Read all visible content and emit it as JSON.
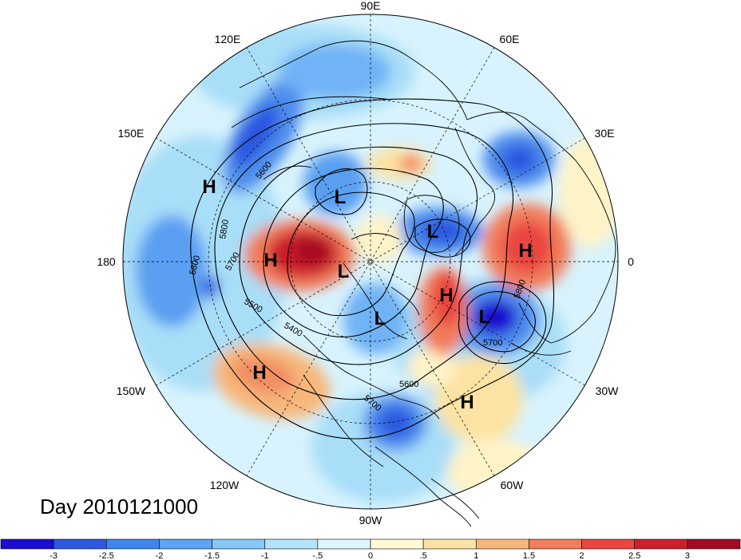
{
  "date_label": "Day 2010121000",
  "longitude_labels": [
    {
      "text": "90E",
      "lon": 90
    },
    {
      "text": "60E",
      "lon": 60
    },
    {
      "text": "30E",
      "lon": 30
    },
    {
      "text": "0",
      "lon": 0
    },
    {
      "text": "30W",
      "lon": -30
    },
    {
      "text": "60W",
      "lon": -60
    },
    {
      "text": "90W",
      "lon": -90
    },
    {
      "text": "120W",
      "lon": -120
    },
    {
      "text": "150W",
      "lon": -150
    },
    {
      "text": "180",
      "lon": 180
    },
    {
      "text": "150E",
      "lon": 150
    },
    {
      "text": "120E",
      "lon": 120
    }
  ],
  "pressure_centers": [
    {
      "type": "H",
      "label": "H"
    },
    {
      "type": "L",
      "label": "L"
    },
    {
      "type": "L",
      "label": "L"
    },
    {
      "type": "H",
      "label": "H"
    },
    {
      "type": "L",
      "label": "L"
    },
    {
      "type": "H",
      "label": "H"
    },
    {
      "type": "L",
      "label": "L"
    },
    {
      "type": "H",
      "label": "H"
    },
    {
      "type": "L",
      "label": "L"
    },
    {
      "type": "L",
      "label": "L"
    },
    {
      "type": "H",
      "label": "H"
    },
    {
      "type": "H",
      "label": "H"
    }
  ],
  "contour_labels": [
    "5800",
    "5800",
    "5700",
    "5600",
    "5500",
    "5400",
    "5600",
    "5700",
    "5800",
    "5700",
    "5600"
  ],
  "colorbar": {
    "ticks": [
      "-3",
      "-2.5",
      "-2",
      "-1.5",
      "-1",
      "-.5",
      "0",
      ".5",
      "1",
      "1.5",
      "2",
      "2.5",
      "3"
    ],
    "colors": [
      "#1b0ccf",
      "#2c57e0",
      "#3f86ec",
      "#5ea4f4",
      "#86c8fa",
      "#b3e4fc",
      "#e0f6fe",
      "#fff9d6",
      "#fde3a3",
      "#f7b77a",
      "#f27d5b",
      "#ea4540",
      "#cc1f2b",
      "#a20b20"
    ]
  },
  "anomaly_colors": {
    "strong_neg": "#1b0ccf",
    "neg": "#3f86ec",
    "weak_neg": "#86c8fa",
    "faint_neg": "#c5ecfc",
    "faint_pos": "#fff3c8",
    "weak_pos": "#fad191",
    "pos": "#f27d5b",
    "strong_pos": "#cc1f2b"
  }
}
